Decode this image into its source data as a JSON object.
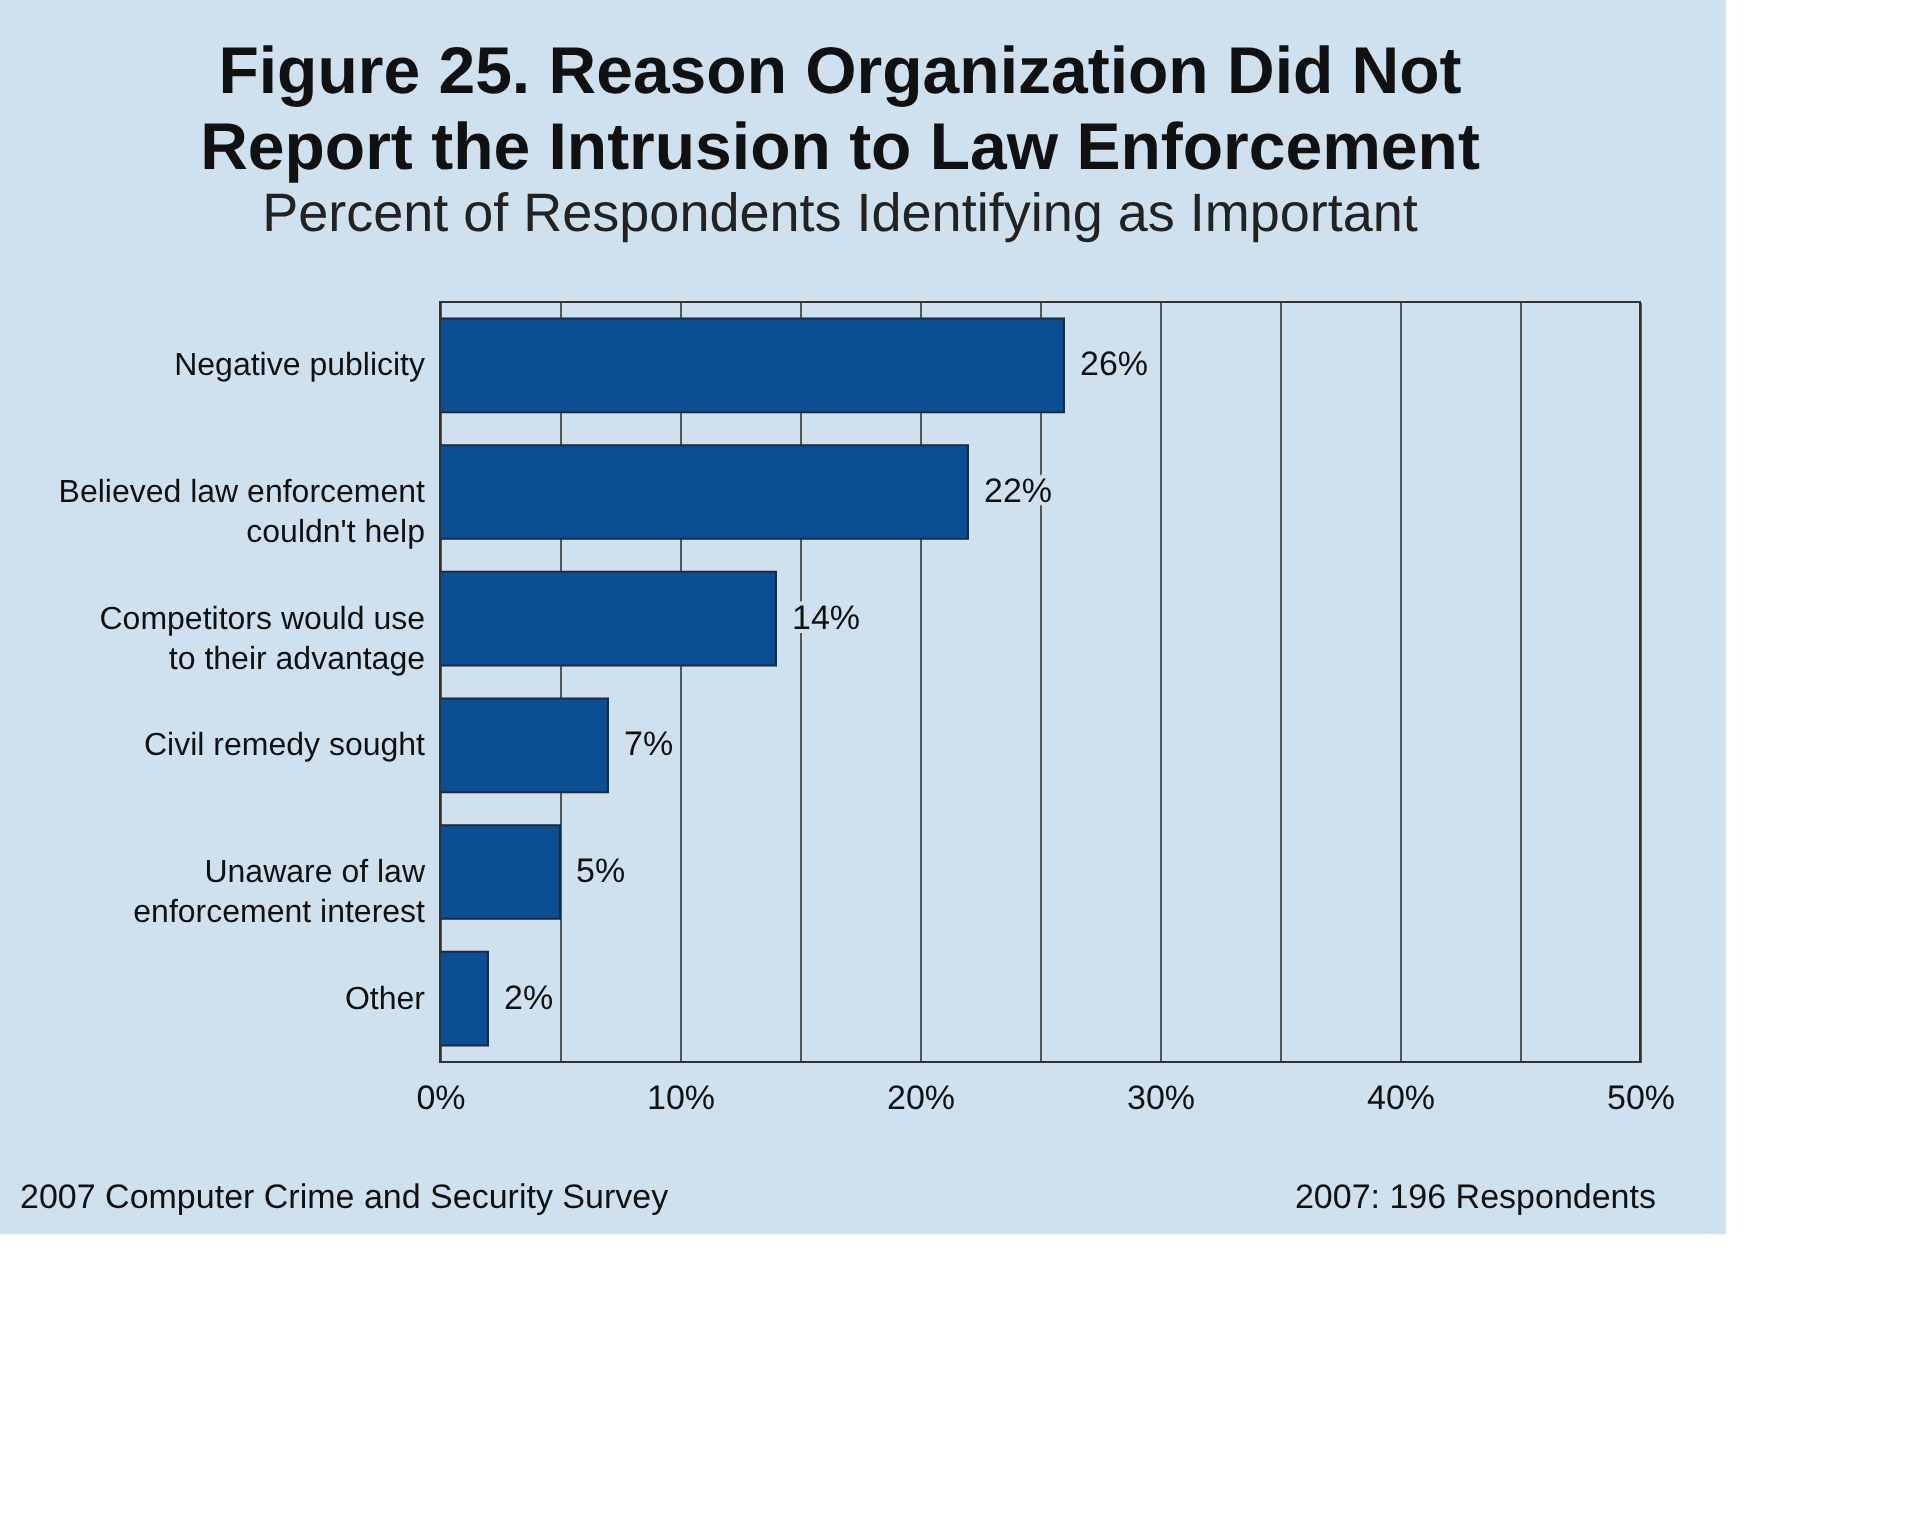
{
  "chart_data": {
    "type": "bar",
    "orientation": "horizontal",
    "title": [
      "Figure 25. Reason Organization Did Not",
      "Report the Intrusion to Law Enforcement"
    ],
    "subtitle": "Percent of Respondents Identifying as Important",
    "categories": [
      "Negative publicity",
      "Believed law enforcement\ncouldn't help",
      "Competitors would use\nto their advantage",
      "Civil remedy sought",
      "Unaware of law\nenforcement interest",
      "Other"
    ],
    "values": [
      26,
      22,
      14,
      7,
      5,
      2
    ],
    "value_labels": [
      "26%",
      "22%",
      "14%",
      "7%",
      "5%",
      "2%"
    ],
    "color": "#0a4f92",
    "xlim": [
      0,
      50
    ],
    "xticks": [
      {
        "value": 0,
        "label": "0%"
      },
      {
        "value": 5,
        "label": null
      },
      {
        "value": 10,
        "label": "10%"
      },
      {
        "value": 15,
        "label": null
      },
      {
        "value": 20,
        "label": "20%"
      },
      {
        "value": 25,
        "label": null
      },
      {
        "value": 30,
        "label": "30%"
      },
      {
        "value": 35,
        "label": null
      },
      {
        "value": 40,
        "label": "40%"
      },
      {
        "value": 45,
        "label": null
      },
      {
        "value": 50,
        "label": "50%"
      }
    ],
    "grid": "x",
    "annotations": [
      "2007 Computer Crime and Security Survey",
      "2007: 196 Respondents"
    ]
  }
}
